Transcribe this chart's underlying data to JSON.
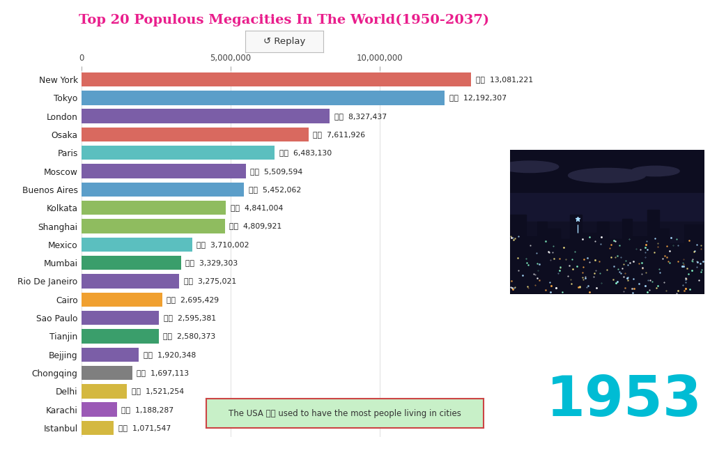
{
  "title": "Top 20 Populous Megacities In The World(1950-2037)",
  "title_color": "#e91e8c",
  "year": "1953",
  "year_color": "#00bcd4",
  "cities": [
    "New York",
    "Tokyo",
    "London",
    "Osaka",
    "Paris",
    "Moscow",
    "Buenos Aires",
    "Kolkata",
    "Shanghai",
    "Mexico",
    "Mumbai",
    "Rio De Janeiro",
    "Cairo",
    "Sao Paulo",
    "Tianjin",
    "Bejjing",
    "Chongqing",
    "Delhi",
    "Karachi",
    "Istanbul"
  ],
  "values": [
    13081221,
    12192307,
    8327437,
    7611926,
    6483130,
    5509594,
    5452062,
    4841004,
    4809921,
    3710002,
    3329303,
    3275021,
    2695429,
    2595381,
    2580373,
    1920348,
    1697113,
    1521254,
    1188287,
    1071547
  ],
  "bar_colors": [
    "#d9695f",
    "#5b9ec9",
    "#7b5ea7",
    "#d9695f",
    "#5bbfbf",
    "#7b5ea7",
    "#5b9ec9",
    "#8fbc5f",
    "#8fbc5f",
    "#5bbfbf",
    "#3a9e6b",
    "#7b5ea7",
    "#f0a030",
    "#7b5ea7",
    "#3a9e6b",
    "#7b5ea7",
    "#7f7f7f",
    "#d4b840",
    "#9b59b6",
    "#d4b840"
  ],
  "value_labels": [
    "13,081,221",
    "12,192,307",
    "8,327,437",
    "7,611,926",
    "6,483,130",
    "5,509,594",
    "5,452,062",
    "4,841,004",
    "4,809,921",
    "3,710,002",
    "3,329,303",
    "3,275,021",
    "2,695,429",
    "2,595,381",
    "2,580,373",
    "1,920,348",
    "1,697,113",
    "1,521,254",
    "1,188,287",
    "1,071,547"
  ],
  "xlabel_ticks": [
    0,
    5000000,
    10000000
  ],
  "xlabel_labels": [
    "0",
    "5,000,000",
    "10,000,000"
  ],
  "xlim": [
    0,
    14200000
  ],
  "annotation_text": "The USA 🇺🇸 used to have the most people living in cities",
  "replay_text": "↺ Replay",
  "bg_color": "#ffffff",
  "chart_bg": "#ffffff",
  "bar_height": 0.78
}
